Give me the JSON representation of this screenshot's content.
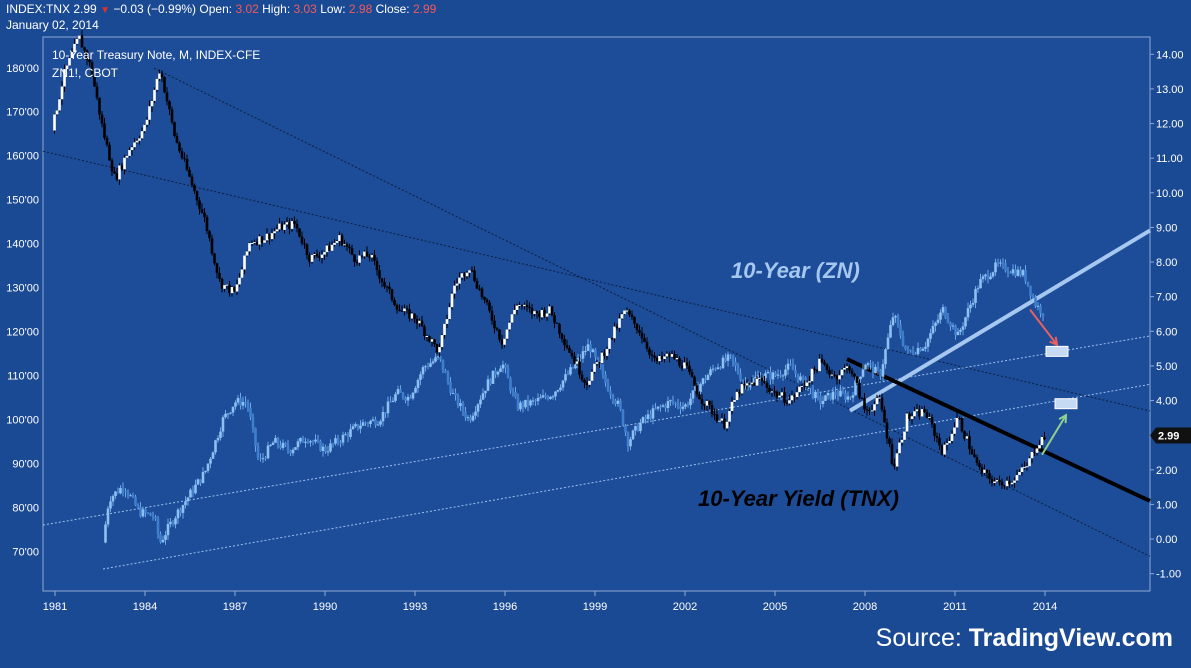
{
  "header": {
    "symbol": "INDEX:TNX",
    "last": "2.99",
    "change": "−0.03 (−0.99%)",
    "open_label": "Open:",
    "open": "3.02",
    "high_label": "High:",
    "high": "3.03",
    "low_label": "Low:",
    "low": "2.98",
    "close_label": "Close:",
    "close": "2.99",
    "date": "January 02, 2014"
  },
  "legend": {
    "line1": "10-Year Treasury Note, M, INDEX-CFE",
    "line2": "ZN1!, CBOT"
  },
  "source": {
    "prefix": "Source: ",
    "name": "TradingView.com"
  },
  "colors": {
    "background": "#1b4a94",
    "tnx_candles": "#000000",
    "zn_candles": "#6aa7e6",
    "zn_trend": "#a6c8f0",
    "tnx_trend": "#000000",
    "red_arrow": "#e86060",
    "green_arrow": "#8fd08f"
  },
  "chart_data": {
    "type": "line",
    "title": "10-Year Treasury Note, M, INDEX-CFE",
    "x_axis": {
      "ticks": [
        "1981",
        "1984",
        "1987",
        "1990",
        "1993",
        "1996",
        "1999",
        "2002",
        "2005",
        "2008",
        "2011",
        "2014"
      ],
      "range": [
        1980.6,
        2017.5
      ]
    },
    "y_left": {
      "ticks": [
        "70'00",
        "80'00",
        "90'00",
        "100'00",
        "110'00",
        "120'00",
        "130'00",
        "140'00",
        "150'00",
        "160'00",
        "170'00",
        "180'00"
      ],
      "range": [
        61,
        187
      ]
    },
    "y_right": {
      "ticks": [
        "-1.00",
        "0.00",
        "1.00",
        "2.00",
        "3.00",
        "4.00",
        "5.00",
        "6.00",
        "7.00",
        "8.00",
        "9.00",
        "10.00",
        "11.00",
        "12.00",
        "13.00",
        "14.00"
      ],
      "range": [
        -1.5,
        14.5
      ],
      "current_value": "2.99"
    },
    "series": [
      {
        "name": "10-Year Yield (TNX)",
        "axis": "right",
        "points": [
          [
            1980.9,
            11.8
          ],
          [
            1981.3,
            13.4
          ],
          [
            1981.8,
            14.5
          ],
          [
            1982.2,
            13.6
          ],
          [
            1982.6,
            11.8
          ],
          [
            1983.0,
            10.4
          ],
          [
            1983.5,
            11.3
          ],
          [
            1984.0,
            11.9
          ],
          [
            1984.5,
            13.6
          ],
          [
            1985.0,
            11.6
          ],
          [
            1985.5,
            10.4
          ],
          [
            1986.0,
            9.2
          ],
          [
            1986.5,
            7.4
          ],
          [
            1987.0,
            7.1
          ],
          [
            1987.5,
            8.6
          ],
          [
            1988.0,
            8.7
          ],
          [
            1988.5,
            9.0
          ],
          [
            1989.0,
            9.1
          ],
          [
            1989.5,
            8.1
          ],
          [
            1990.0,
            8.3
          ],
          [
            1990.5,
            8.7
          ],
          [
            1991.0,
            8.1
          ],
          [
            1991.5,
            8.2
          ],
          [
            1992.0,
            7.3
          ],
          [
            1992.5,
            6.6
          ],
          [
            1993.0,
            6.4
          ],
          [
            1993.8,
            5.4
          ],
          [
            1994.3,
            7.3
          ],
          [
            1994.8,
            7.9
          ],
          [
            1995.3,
            6.9
          ],
          [
            1995.9,
            5.7
          ],
          [
            1996.4,
            6.8
          ],
          [
            1997.0,
            6.5
          ],
          [
            1997.5,
            6.6
          ],
          [
            1998.0,
            5.7
          ],
          [
            1998.7,
            4.5
          ],
          [
            1999.3,
            5.4
          ],
          [
            2000.0,
            6.6
          ],
          [
            2000.5,
            6.0
          ],
          [
            2001.0,
            5.1
          ],
          [
            2001.5,
            5.3
          ],
          [
            2002.0,
            5.0
          ],
          [
            2002.5,
            4.1
          ],
          [
            2003.3,
            3.3
          ],
          [
            2003.8,
            4.3
          ],
          [
            2004.5,
            4.6
          ],
          [
            2005.0,
            4.2
          ],
          [
            2005.5,
            4.0
          ],
          [
            2006.0,
            4.5
          ],
          [
            2006.5,
            5.1
          ],
          [
            2007.0,
            4.7
          ],
          [
            2007.5,
            5.0
          ],
          [
            2008.0,
            3.7
          ],
          [
            2008.5,
            4.0
          ],
          [
            2008.95,
            2.1
          ],
          [
            2009.4,
            3.5
          ],
          [
            2010.0,
            3.7
          ],
          [
            2010.6,
            2.5
          ],
          [
            2011.1,
            3.5
          ],
          [
            2011.8,
            2.0
          ],
          [
            2012.4,
            1.6
          ],
          [
            2012.9,
            1.7
          ],
          [
            2013.4,
            2.1
          ],
          [
            2013.7,
            2.7
          ],
          [
            2014.0,
            2.99
          ]
        ]
      },
      {
        "name": "10-Year (ZN)",
        "axis": "left",
        "points": [
          [
            1982.6,
            72
          ],
          [
            1982.8,
            82
          ],
          [
            1983.3,
            85
          ],
          [
            1983.8,
            79
          ],
          [
            1984.3,
            78
          ],
          [
            1984.5,
            72
          ],
          [
            1985.0,
            78
          ],
          [
            1985.5,
            83
          ],
          [
            1986.0,
            88
          ],
          [
            1986.6,
            100
          ],
          [
            1987.0,
            104
          ],
          [
            1987.4,
            104
          ],
          [
            1987.8,
            90
          ],
          [
            1988.3,
            95
          ],
          [
            1988.8,
            93
          ],
          [
            1989.4,
            96
          ],
          [
            1990.0,
            93
          ],
          [
            1990.6,
            96
          ],
          [
            1991.2,
            99
          ],
          [
            1991.8,
            100
          ],
          [
            1992.4,
            106
          ],
          [
            1992.8,
            105
          ],
          [
            1993.3,
            112
          ],
          [
            1993.8,
            114
          ],
          [
            1994.3,
            105
          ],
          [
            1994.8,
            100
          ],
          [
            1995.4,
            108
          ],
          [
            1995.9,
            113
          ],
          [
            1996.4,
            103
          ],
          [
            1997.0,
            104
          ],
          [
            1997.6,
            106
          ],
          [
            1998.3,
            112
          ],
          [
            1998.8,
            117
          ],
          [
            1999.3,
            109
          ],
          [
            1999.8,
            103
          ],
          [
            2000.1,
            95
          ],
          [
            2000.5,
            99
          ],
          [
            2001.0,
            102
          ],
          [
            2001.5,
            104
          ],
          [
            2002.0,
            103
          ],
          [
            2002.5,
            108
          ],
          [
            2003.0,
            112
          ],
          [
            2003.5,
            114
          ],
          [
            2004.0,
            108
          ],
          [
            2004.5,
            110
          ],
          [
            2005.0,
            110
          ],
          [
            2005.5,
            112
          ],
          [
            2006.0,
            108
          ],
          [
            2006.5,
            104
          ],
          [
            2007.0,
            106
          ],
          [
            2007.5,
            105
          ],
          [
            2008.0,
            113
          ],
          [
            2008.5,
            110
          ],
          [
            2008.95,
            124
          ],
          [
            2009.4,
            115
          ],
          [
            2010.0,
            117
          ],
          [
            2010.6,
            125
          ],
          [
            2011.1,
            119
          ],
          [
            2011.8,
            131
          ],
          [
            2012.4,
            135
          ],
          [
            2012.9,
            134
          ],
          [
            2013.3,
            133
          ],
          [
            2013.7,
            126
          ],
          [
            2014.0,
            124
          ]
        ]
      }
    ],
    "trendlines": [
      {
        "style": "dotted",
        "axis": "right",
        "from": [
          1980.6,
          11.2
        ],
        "to": [
          2017.5,
          3.7
        ]
      },
      {
        "style": "dotted",
        "axis": "right",
        "from": [
          1984.3,
          13.6
        ],
        "to": [
          2017.5,
          -0.5
        ]
      },
      {
        "style": "dotted_light",
        "axis": "left",
        "from": [
          1980.6,
          76
        ],
        "to": [
          2017.5,
          119
        ]
      },
      {
        "style": "dotted_light",
        "axis": "left",
        "from": [
          1982.6,
          66
        ],
        "to": [
          2017.5,
          108
        ]
      },
      {
        "style": "solid_light",
        "axis": "left",
        "from": [
          2007.5,
          102
        ],
        "to": [
          2017.5,
          143
        ]
      },
      {
        "style": "solid_black",
        "axis": "right",
        "from": [
          2007.4,
          5.2
        ],
        "to": [
          2017.5,
          1.1
        ]
      }
    ],
    "arrows": [
      {
        "color": "red",
        "from": [
          2013.5,
          125
        ],
        "to": [
          2014.4,
          117
        ]
      },
      {
        "color": "green",
        "from": [
          2013.9,
          92
        ],
        "to": [
          2014.7,
          101
        ]
      }
    ],
    "target_boxes": [
      {
        "axis": "left",
        "x": 2014.4,
        "y": 115.5
      },
      {
        "axis": "left",
        "x": 2014.7,
        "y": 103.6
      }
    ],
    "annotations": [
      {
        "text": "10-Year (ZN)",
        "color": "#a6c8f0"
      },
      {
        "text": "10-Year Yield (TNX)",
        "color": "#000000"
      }
    ],
    "grid": false
  }
}
